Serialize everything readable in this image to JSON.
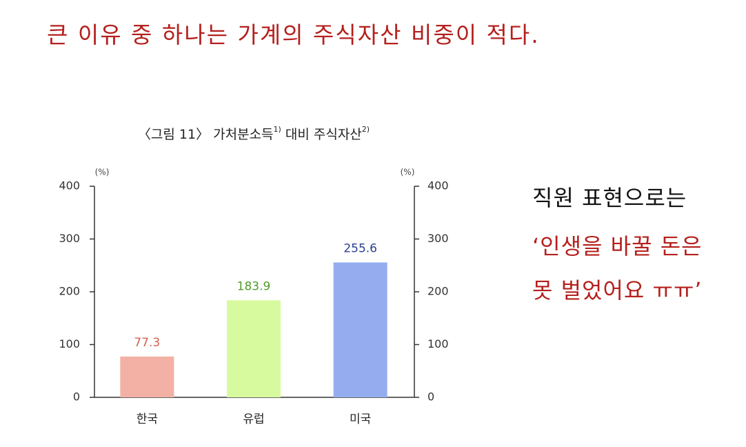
{
  "slide": {
    "heading": "큰 이유 중 하나는 가계의 주식자산 비중이 적다.",
    "side_lines": [
      "직원 표현으로는",
      "‘인생을 바꿀 돈은",
      "못 벌었어요 ㅠㅠ’"
    ],
    "side_colors": [
      "#111111",
      "#b4201d",
      "#b4201d"
    ]
  },
  "chart_data": {
    "type": "bar",
    "title_parts": [
      "〈그림 11〉 가처분소득",
      "1)",
      " 대비 주식자산",
      "2)"
    ],
    "y_unit": "(%)",
    "y2_unit": "(%)",
    "categories": [
      "한국",
      "유럽",
      "미국"
    ],
    "values": [
      77.3,
      183.9,
      255.6
    ],
    "colors": [
      "#f2b1a4",
      "#d8fa9e",
      "#95adef"
    ],
    "value_label_colors": [
      "#d4604c",
      "#4f9c2a",
      "#2a3f8f"
    ],
    "ylim": [
      0,
      400
    ],
    "yticks": [
      0,
      100,
      200,
      300,
      400
    ],
    "y2lim": [
      0,
      400
    ],
    "y2ticks": [
      0,
      100,
      200,
      300,
      400
    ]
  }
}
